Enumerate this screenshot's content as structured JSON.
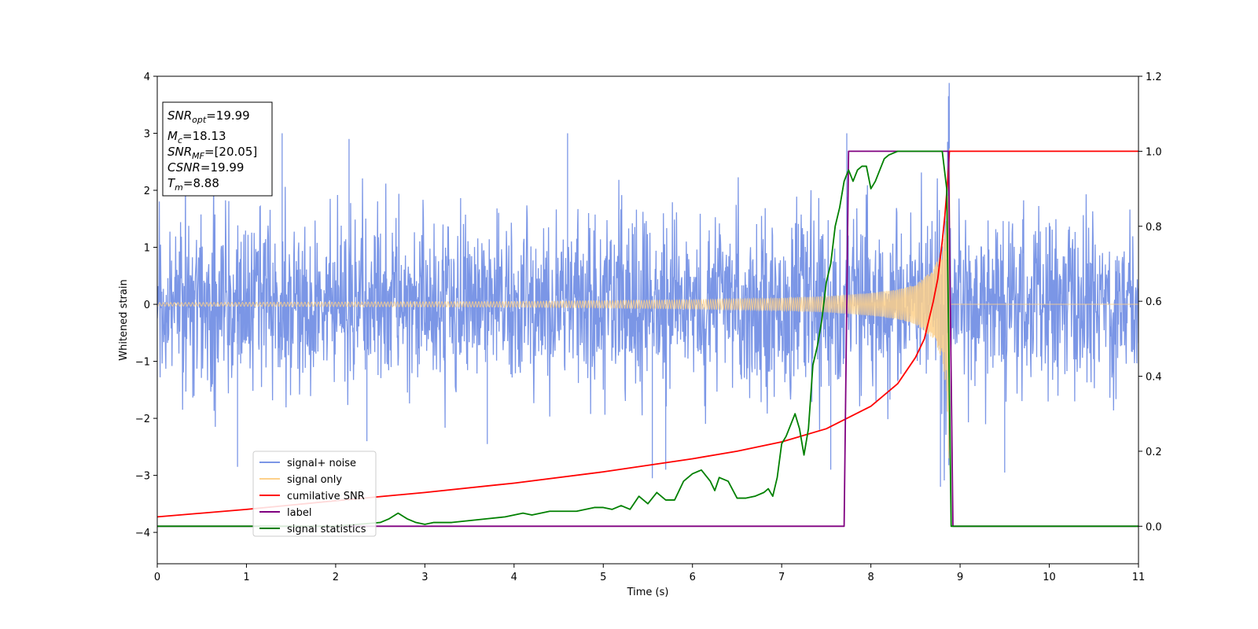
{
  "chart_data": {
    "type": "line",
    "xlabel": "Time (s)",
    "ylabel": "Whitened strain",
    "x_ticks": [
      "0",
      "1",
      "2",
      "3",
      "4",
      "5",
      "6",
      "7",
      "8",
      "9",
      "10",
      "11"
    ],
    "y_ticks": [
      "4",
      "3",
      "2",
      "1",
      "0",
      "−1",
      "−2",
      "−3",
      "−4"
    ],
    "y2_ticks": [
      "1.2",
      "1.0",
      "0.8",
      "0.6",
      "0.4",
      "0.2",
      "0.0"
    ],
    "xlim": [
      0,
      11
    ],
    "ylim": [
      -4.55,
      4.0
    ],
    "y2lim": [
      -0.1,
      1.2
    ],
    "grid": false,
    "legend_position": "lower-left",
    "info_box": {
      "snr_opt": "=19.99",
      "mc": "=18.13",
      "snr_mf": "=[20.05]",
      "csnr": "=19.99",
      "tm": "=8.88"
    },
    "series": [
      {
        "name": "signal+ noise",
        "color": "#7b96e6",
        "axis": "left",
        "description_values": {
          "std": 0.75,
          "range": [
            -4.15,
            3.65
          ]
        },
        "x": [
          0.9,
          1.4,
          2.15,
          2.35,
          3.7,
          4.6,
          5.55,
          5.7,
          7.55,
          7.73,
          8.78,
          8.86,
          8.87,
          9.5
        ],
        "y": [
          -2.85,
          3.0,
          2.9,
          -2.4,
          -2.45,
          3.0,
          -3.05,
          -2.9,
          -2.9,
          3.0,
          -3.2,
          2.85,
          3.65,
          -2.95
        ]
      },
      {
        "name": "signal only",
        "color": "#fdd08a",
        "axis": "left",
        "x": [
          0,
          2,
          4,
          6,
          7,
          7.5,
          8,
          8.3,
          8.5,
          8.7,
          8.8,
          8.85,
          8.88,
          8.89,
          11
        ],
        "y": [
          0.03,
          0.04,
          0.05,
          0.08,
          0.11,
          0.14,
          0.2,
          0.26,
          0.35,
          0.6,
          1.0,
          1.6,
          3.2,
          0,
          0
        ]
      },
      {
        "name": "cumilative SNR",
        "color": "#ff0000",
        "axis": "right",
        "x": [
          0,
          1,
          2,
          3,
          4,
          5,
          6,
          6.5,
          7,
          7.5,
          8,
          8.3,
          8.5,
          8.6,
          8.7,
          8.75,
          8.8,
          8.83,
          8.86,
          8.88,
          11
        ],
        "y": [
          0.025,
          0.045,
          0.068,
          0.09,
          0.115,
          0.145,
          0.18,
          0.2,
          0.225,
          0.26,
          0.32,
          0.38,
          0.45,
          0.5,
          0.6,
          0.66,
          0.76,
          0.83,
          0.92,
          1.0,
          1.0
        ]
      },
      {
        "name": "label",
        "color": "#800080",
        "axis": "right",
        "x": [
          0,
          7.7,
          7.75,
          8.87,
          8.92,
          11
        ],
        "y": [
          0,
          0,
          1.0,
          1.0,
          0,
          0
        ]
      },
      {
        "name": "signal statistics",
        "color": "#008000",
        "axis": "right",
        "x": [
          0,
          1,
          2,
          2.5,
          2.6,
          2.7,
          2.8,
          2.9,
          3.0,
          3.1,
          3.3,
          3.5,
          3.7,
          3.9,
          4.0,
          4.1,
          4.2,
          4.3,
          4.4,
          4.5,
          4.6,
          4.7,
          4.8,
          4.9,
          5.0,
          5.1,
          5.2,
          5.3,
          5.4,
          5.5,
          5.6,
          5.7,
          5.8,
          5.9,
          6.0,
          6.1,
          6.2,
          6.25,
          6.3,
          6.4,
          6.5,
          6.6,
          6.7,
          6.8,
          6.85,
          6.9,
          6.95,
          7.0,
          7.05,
          7.1,
          7.15,
          7.2,
          7.25,
          7.3,
          7.35,
          7.4,
          7.45,
          7.5,
          7.55,
          7.6,
          7.65,
          7.7,
          7.75,
          7.8,
          7.85,
          7.9,
          7.95,
          8.0,
          8.05,
          8.1,
          8.15,
          8.2,
          8.25,
          8.3,
          8.4,
          8.5,
          8.6,
          8.7,
          8.8,
          8.85,
          8.9,
          8.95,
          11
        ],
        "y": [
          0,
          0,
          0,
          0.01,
          0.02,
          0.035,
          0.02,
          0.01,
          0.005,
          0.01,
          0.01,
          0.015,
          0.02,
          0.025,
          0.03,
          0.035,
          0.03,
          0.035,
          0.04,
          0.04,
          0.04,
          0.04,
          0.045,
          0.05,
          0.05,
          0.045,
          0.055,
          0.045,
          0.08,
          0.06,
          0.09,
          0.07,
          0.07,
          0.12,
          0.14,
          0.15,
          0.12,
          0.095,
          0.13,
          0.12,
          0.075,
          0.075,
          0.08,
          0.09,
          0.1,
          0.08,
          0.13,
          0.22,
          0.24,
          0.27,
          0.3,
          0.26,
          0.19,
          0.26,
          0.43,
          0.48,
          0.55,
          0.65,
          0.7,
          0.8,
          0.85,
          0.92,
          0.95,
          0.92,
          0.95,
          0.96,
          0.96,
          0.9,
          0.92,
          0.95,
          0.98,
          0.99,
          0.995,
          1.0,
          1.0,
          1.0,
          1.0,
          1.0,
          1.0,
          0.9,
          0.0,
          0.0,
          0.0
        ]
      }
    ]
  }
}
